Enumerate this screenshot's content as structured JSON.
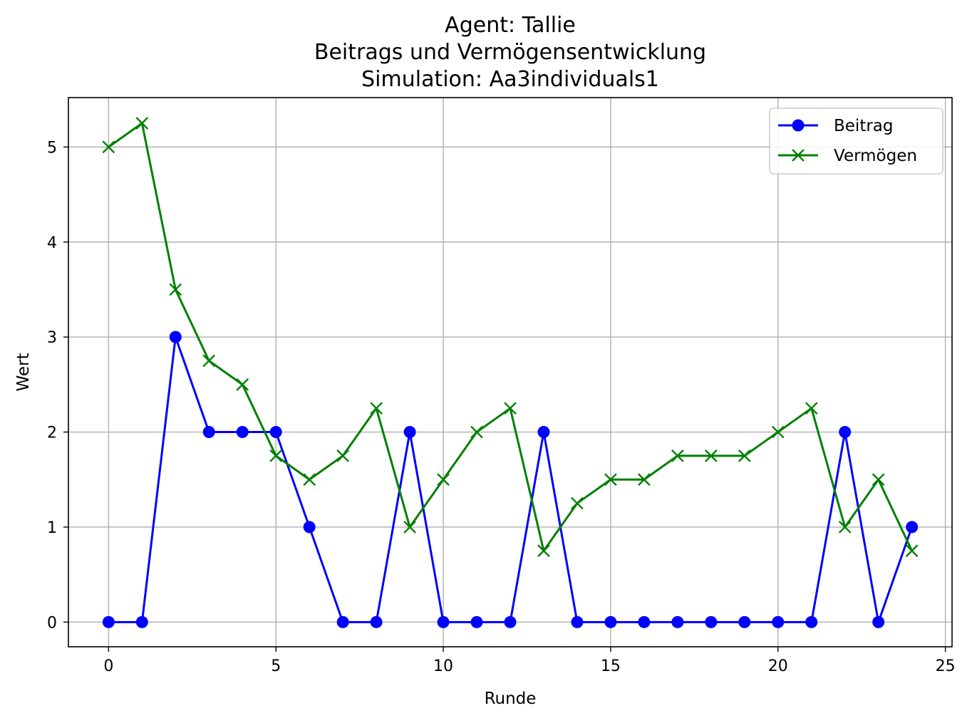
{
  "chart_data": {
    "type": "line",
    "title_lines": [
      "Agent: Tallie",
      "Beitrags und Vermögensentwicklung",
      "Simulation: Aa3individuals1"
    ],
    "xlabel": "Runde",
    "ylabel": "Wert",
    "xlim": [
      -1.2,
      25.2
    ],
    "ylim": [
      -0.26,
      5.52
    ],
    "xticks": [
      0,
      5,
      10,
      15,
      20,
      25
    ],
    "yticks": [
      0,
      1,
      2,
      3,
      4,
      5
    ],
    "grid": true,
    "legend_position": "top-right",
    "x": [
      0,
      1,
      2,
      3,
      4,
      5,
      6,
      7,
      8,
      9,
      10,
      11,
      12,
      13,
      14,
      15,
      16,
      17,
      18,
      19,
      20,
      21,
      22,
      23,
      24
    ],
    "series": [
      {
        "name": "Beitrag",
        "color": "#0000ff",
        "marker": "circle",
        "values": [
          0,
          0,
          3,
          2,
          2,
          2,
          1,
          0,
          0,
          2,
          0,
          0,
          0,
          2,
          0,
          0,
          0,
          0,
          0,
          0,
          0,
          0,
          2,
          0,
          1
        ]
      },
      {
        "name": "Vermögen",
        "color": "#008000",
        "marker": "x",
        "values": [
          5,
          5.25,
          3.5,
          2.75,
          2.5,
          1.75,
          1.5,
          1.75,
          2.25,
          1,
          1.5,
          2,
          2.25,
          0.75,
          1.25,
          1.5,
          1.5,
          1.75,
          1.75,
          1.75,
          2,
          2.25,
          1,
          1.5,
          0.75
        ]
      }
    ]
  }
}
